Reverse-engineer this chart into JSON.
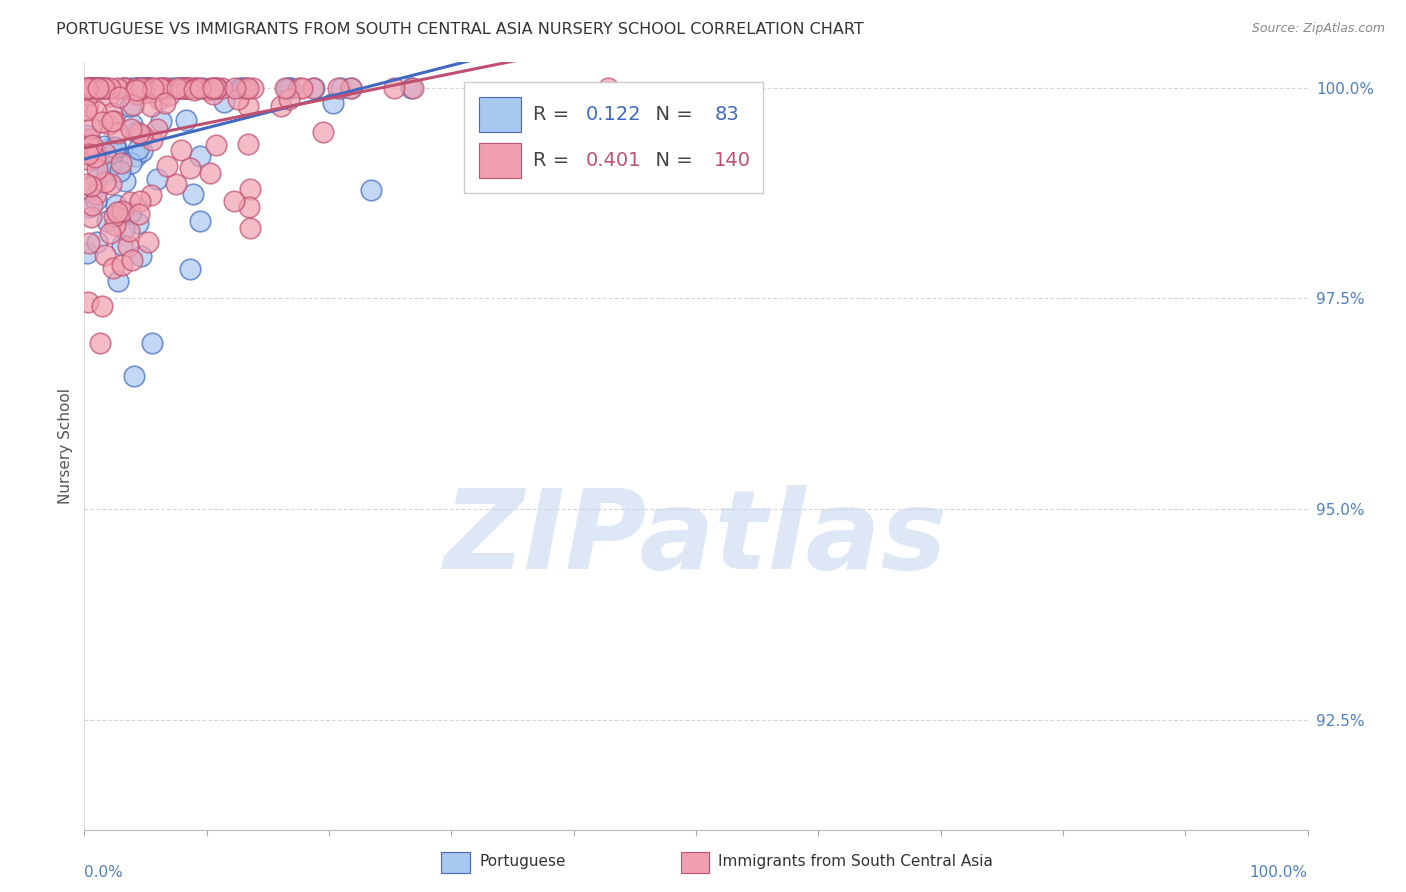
{
  "title": "PORTUGUESE VS IMMIGRANTS FROM SOUTH CENTRAL ASIA NURSERY SCHOOL CORRELATION CHART",
  "source": "Source: ZipAtlas.com",
  "ylabel": "Nursery School",
  "blue_R": 0.122,
  "blue_N": 83,
  "pink_R": 0.401,
  "pink_N": 140,
  "legend_blue": "Portuguese",
  "legend_pink": "Immigrants from South Central Asia",
  "watermark": "ZIPatlas",
  "blue_color": "#A8C8F0",
  "pink_color": "#F0A0B0",
  "blue_line_color": "#4169C0",
  "pink_line_color": "#C05070",
  "title_color": "#333333",
  "right_axis_color": "#5080C0",
  "grid_color": "#CCCCCC",
  "watermark_color": "#C8D8F0",
  "ytick_values": [
    0.925,
    0.95,
    0.975,
    1.0
  ],
  "xlim": [
    0.0,
    1.0
  ],
  "ylim": [
    0.912,
    1.003
  ]
}
